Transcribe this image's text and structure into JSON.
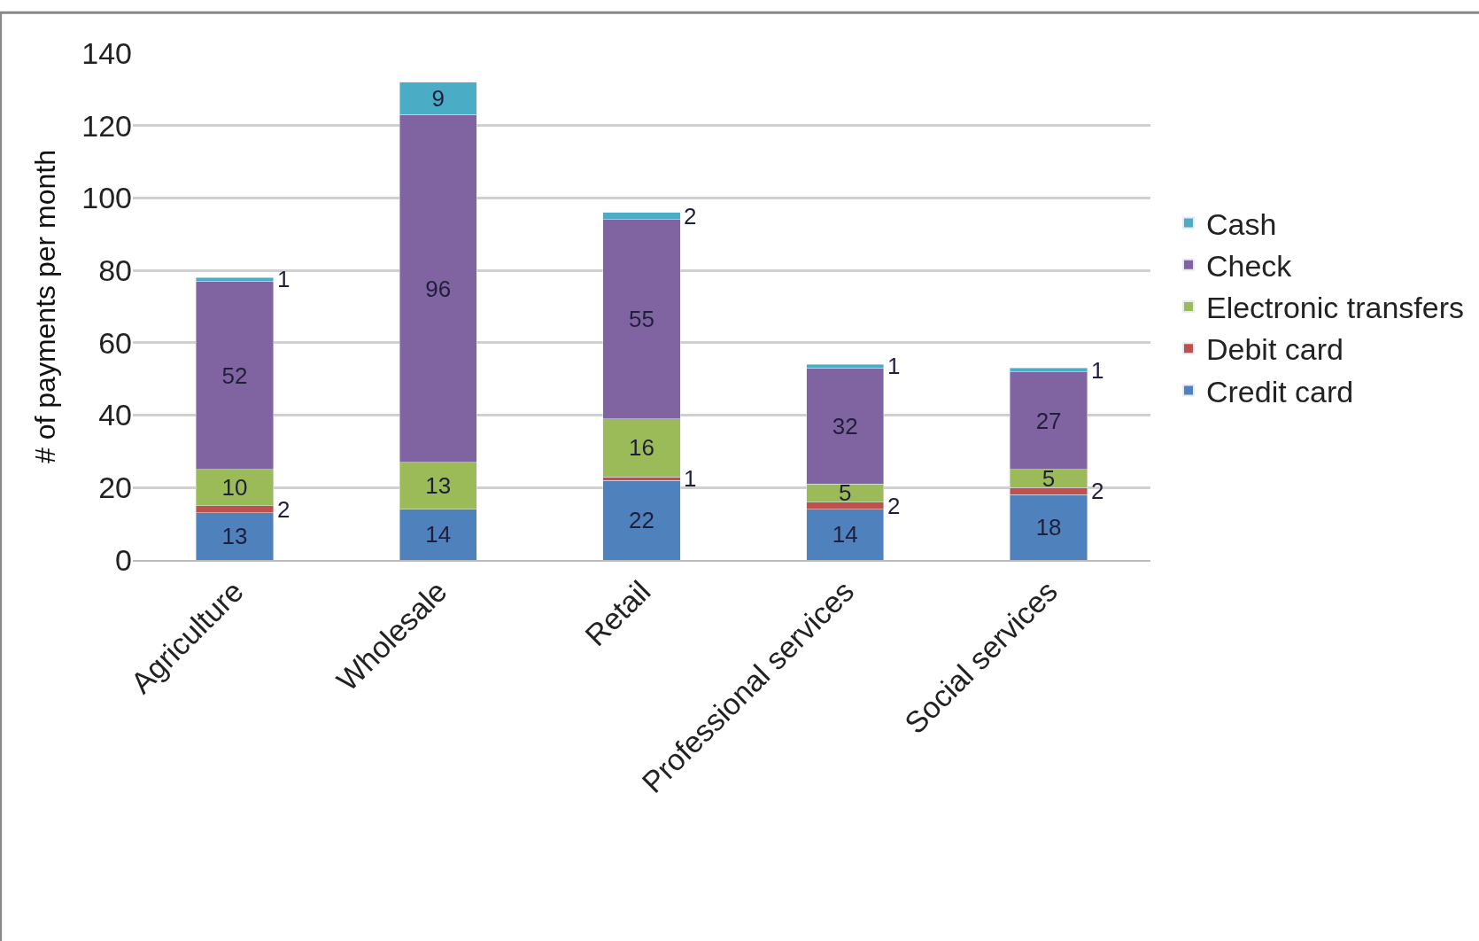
{
  "chart_data": {
    "type": "bar",
    "stacked": true,
    "ylabel": "# of payments per month",
    "categories": [
      "Agriculture",
      "Wholesale",
      "Retail",
      "Professional services",
      "Social services"
    ],
    "series": [
      {
        "name": "Credit card",
        "color": "#4f81bd",
        "values": [
          13,
          14,
          22,
          14,
          18
        ]
      },
      {
        "name": "Debit card",
        "color": "#c0504d",
        "values": [
          2,
          null,
          1,
          2,
          2
        ]
      },
      {
        "name": "Electronic transfers",
        "color": "#9bbb59",
        "values": [
          10,
          13,
          16,
          5,
          5
        ]
      },
      {
        "name": "Check",
        "color": "#8064a2",
        "values": [
          52,
          96,
          55,
          32,
          27
        ]
      },
      {
        "name": "Cash",
        "color": "#4bacc6",
        "values": [
          1,
          9,
          2,
          1,
          1
        ]
      }
    ],
    "ylim": [
      0,
      140
    ],
    "yticks": [
      0,
      20,
      40,
      60,
      80,
      100,
      120,
      140
    ],
    "grid": "y",
    "legend": "right",
    "data_labels": true
  }
}
